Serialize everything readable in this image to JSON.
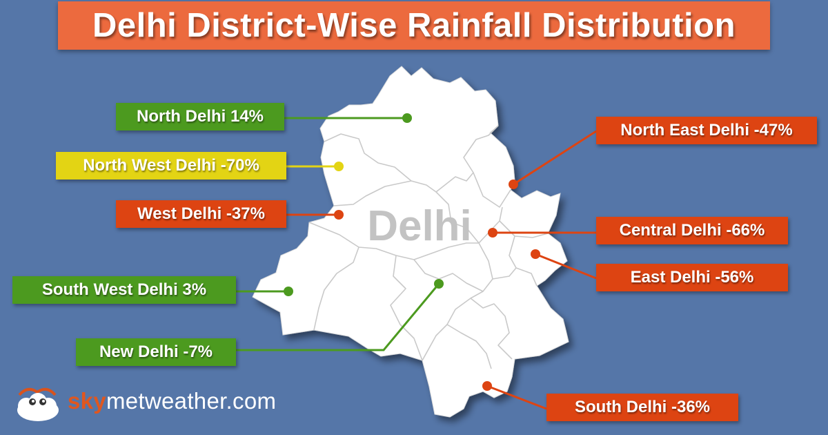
{
  "title": "Delhi District-Wise Rainfall Distribution",
  "map_label": "Delhi",
  "colors": {
    "background": "#5576a8",
    "title_bg": "#ec6a3e",
    "excess_green": "#4c9a1f",
    "deficient_yellow": "#e3d414",
    "deficient_red": "#dd4412",
    "map_fill": "#ffffff",
    "district_border": "#c7c7c7"
  },
  "districts": [
    {
      "key": "north",
      "name": "North Delhi",
      "value": "14%",
      "label": "North Delhi 14%",
      "color": "#4c9a1f"
    },
    {
      "key": "north_west",
      "name": "North West Delhi",
      "value": "-70%",
      "label": "North West Delhi -70%",
      "color": "#e3d414"
    },
    {
      "key": "west",
      "name": "West Delhi",
      "value": "-37%",
      "label": "West Delhi -37%",
      "color": "#dd4412"
    },
    {
      "key": "south_west",
      "name": "South West Delhi",
      "value": "3%",
      "label": "South West Delhi 3%",
      "color": "#4c9a1f"
    },
    {
      "key": "new_delhi",
      "name": "New Delhi",
      "value": "-7%",
      "label": "New Delhi -7%",
      "color": "#4c9a1f"
    },
    {
      "key": "north_east",
      "name": "North East Delhi",
      "value": "-47%",
      "label": "North East Delhi -47%",
      "color": "#dd4412"
    },
    {
      "key": "central",
      "name": "Central Delhi",
      "value": "-66%",
      "label": "Central Delhi -66%",
      "color": "#dd4412"
    },
    {
      "key": "east",
      "name": "East Delhi",
      "value": "-56%",
      "label": "East Delhi -56%",
      "color": "#dd4412"
    },
    {
      "key": "south",
      "name": "South Delhi",
      "value": "-36%",
      "label": "South Delhi -36%",
      "color": "#dd4412"
    }
  ],
  "brand": {
    "sky": "sky",
    "rest": "metweather.com",
    "logo_icon": "cloud-mascot-icon"
  }
}
